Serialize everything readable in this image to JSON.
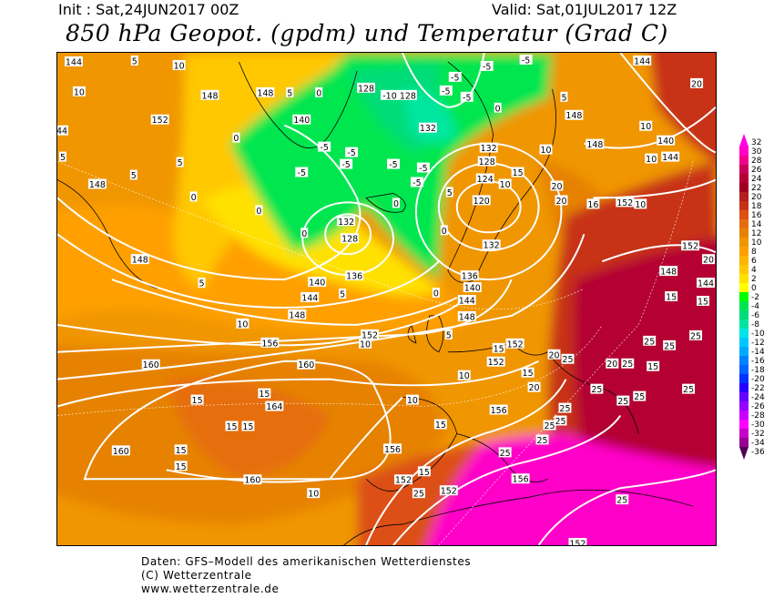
{
  "header": {
    "init": "Init : Sat,24JUN2017 00Z",
    "valid": "Valid: Sat,01JUL2017 12Z",
    "title": "850 hPa Geopot. (gpdm) und Temperatur (Grad C)"
  },
  "legend": {
    "labels": [
      "32",
      "30",
      "28",
      "26",
      "24",
      "22",
      "20",
      "18",
      "16",
      "14",
      "12",
      "10",
      "8",
      "6",
      "4",
      "2",
      "0",
      "-2",
      "-4",
      "-6",
      "-8",
      "-10",
      "-12",
      "-14",
      "-16",
      "-18",
      "-20",
      "-22",
      "-24",
      "-26",
      "-28",
      "-30",
      "-32",
      "-34",
      "-36"
    ],
    "colors": [
      "#ff00e6",
      "#ff00c8",
      "#f0008c",
      "#c8005a",
      "#b40032",
      "#a00020",
      "#b41e1e",
      "#c83214",
      "#dc5014",
      "#e66e0a",
      "#e68200",
      "#f09600",
      "#ffa000",
      "#ffb400",
      "#ffc800",
      "#ffe100",
      "#ffff00",
      "#00ff00",
      "#00e650",
      "#00dc78",
      "#00e6a0",
      "#00e6e6",
      "#00c8ff",
      "#00aaff",
      "#0082ff",
      "#0064ff",
      "#0032ff",
      "#2800ff",
      "#6400ff",
      "#9600ff",
      "#c800ff",
      "#ff00ff",
      "#c800c8",
      "#960096",
      "#500050"
    ]
  },
  "map": {
    "contour_labels": [
      "144",
      "5",
      "10",
      "148",
      "148",
      "5",
      "0",
      "128",
      "-10",
      "128",
      "-5",
      "-5",
      "-5",
      "-5",
      "-5",
      "0",
      "5",
      "148",
      "144",
      "20",
      "10",
      "152",
      "140",
      "132",
      "10",
      "140",
      "144",
      "10",
      "44",
      "5",
      "5",
      "0",
      "-5",
      "-5",
      "-5",
      "-5",
      "-5",
      "-5",
      "-5",
      "132",
      "128",
      "124",
      "15",
      "10",
      "148",
      "148",
      "5",
      "0",
      "0",
      "0",
      "5",
      "20",
      "20",
      "120",
      "10",
      "16",
      "152",
      "10",
      "132",
      "128",
      "0",
      "0",
      "132",
      "152",
      "20",
      "148",
      "140",
      "136",
      "136",
      "140",
      "144",
      "148",
      "5",
      "0",
      "5",
      "144",
      "148",
      "148",
      "144",
      "15",
      "15",
      "10",
      "152",
      "156",
      "10",
      "5",
      "152",
      "15",
      "20",
      "25",
      "152",
      "25",
      "25",
      "25",
      "20",
      "25",
      "15",
      "160",
      "160",
      "10",
      "15",
      "20",
      "25",
      "25",
      "25",
      "25",
      "10",
      "15",
      "15",
      "164",
      "156",
      "25",
      "25",
      "15",
      "15",
      "15",
      "25",
      "160",
      "15",
      "156",
      "25",
      "25",
      "15",
      "15",
      "152",
      "160",
      "156",
      "10",
      "25",
      "152",
      "25",
      "152"
    ]
  },
  "footer": {
    "line1": "Daten: GFS–Modell des amerikanischen Wetterdienstes",
    "line2": "(C) Wetterzentrale",
    "line3": "www.wetterzentrale.de"
  }
}
